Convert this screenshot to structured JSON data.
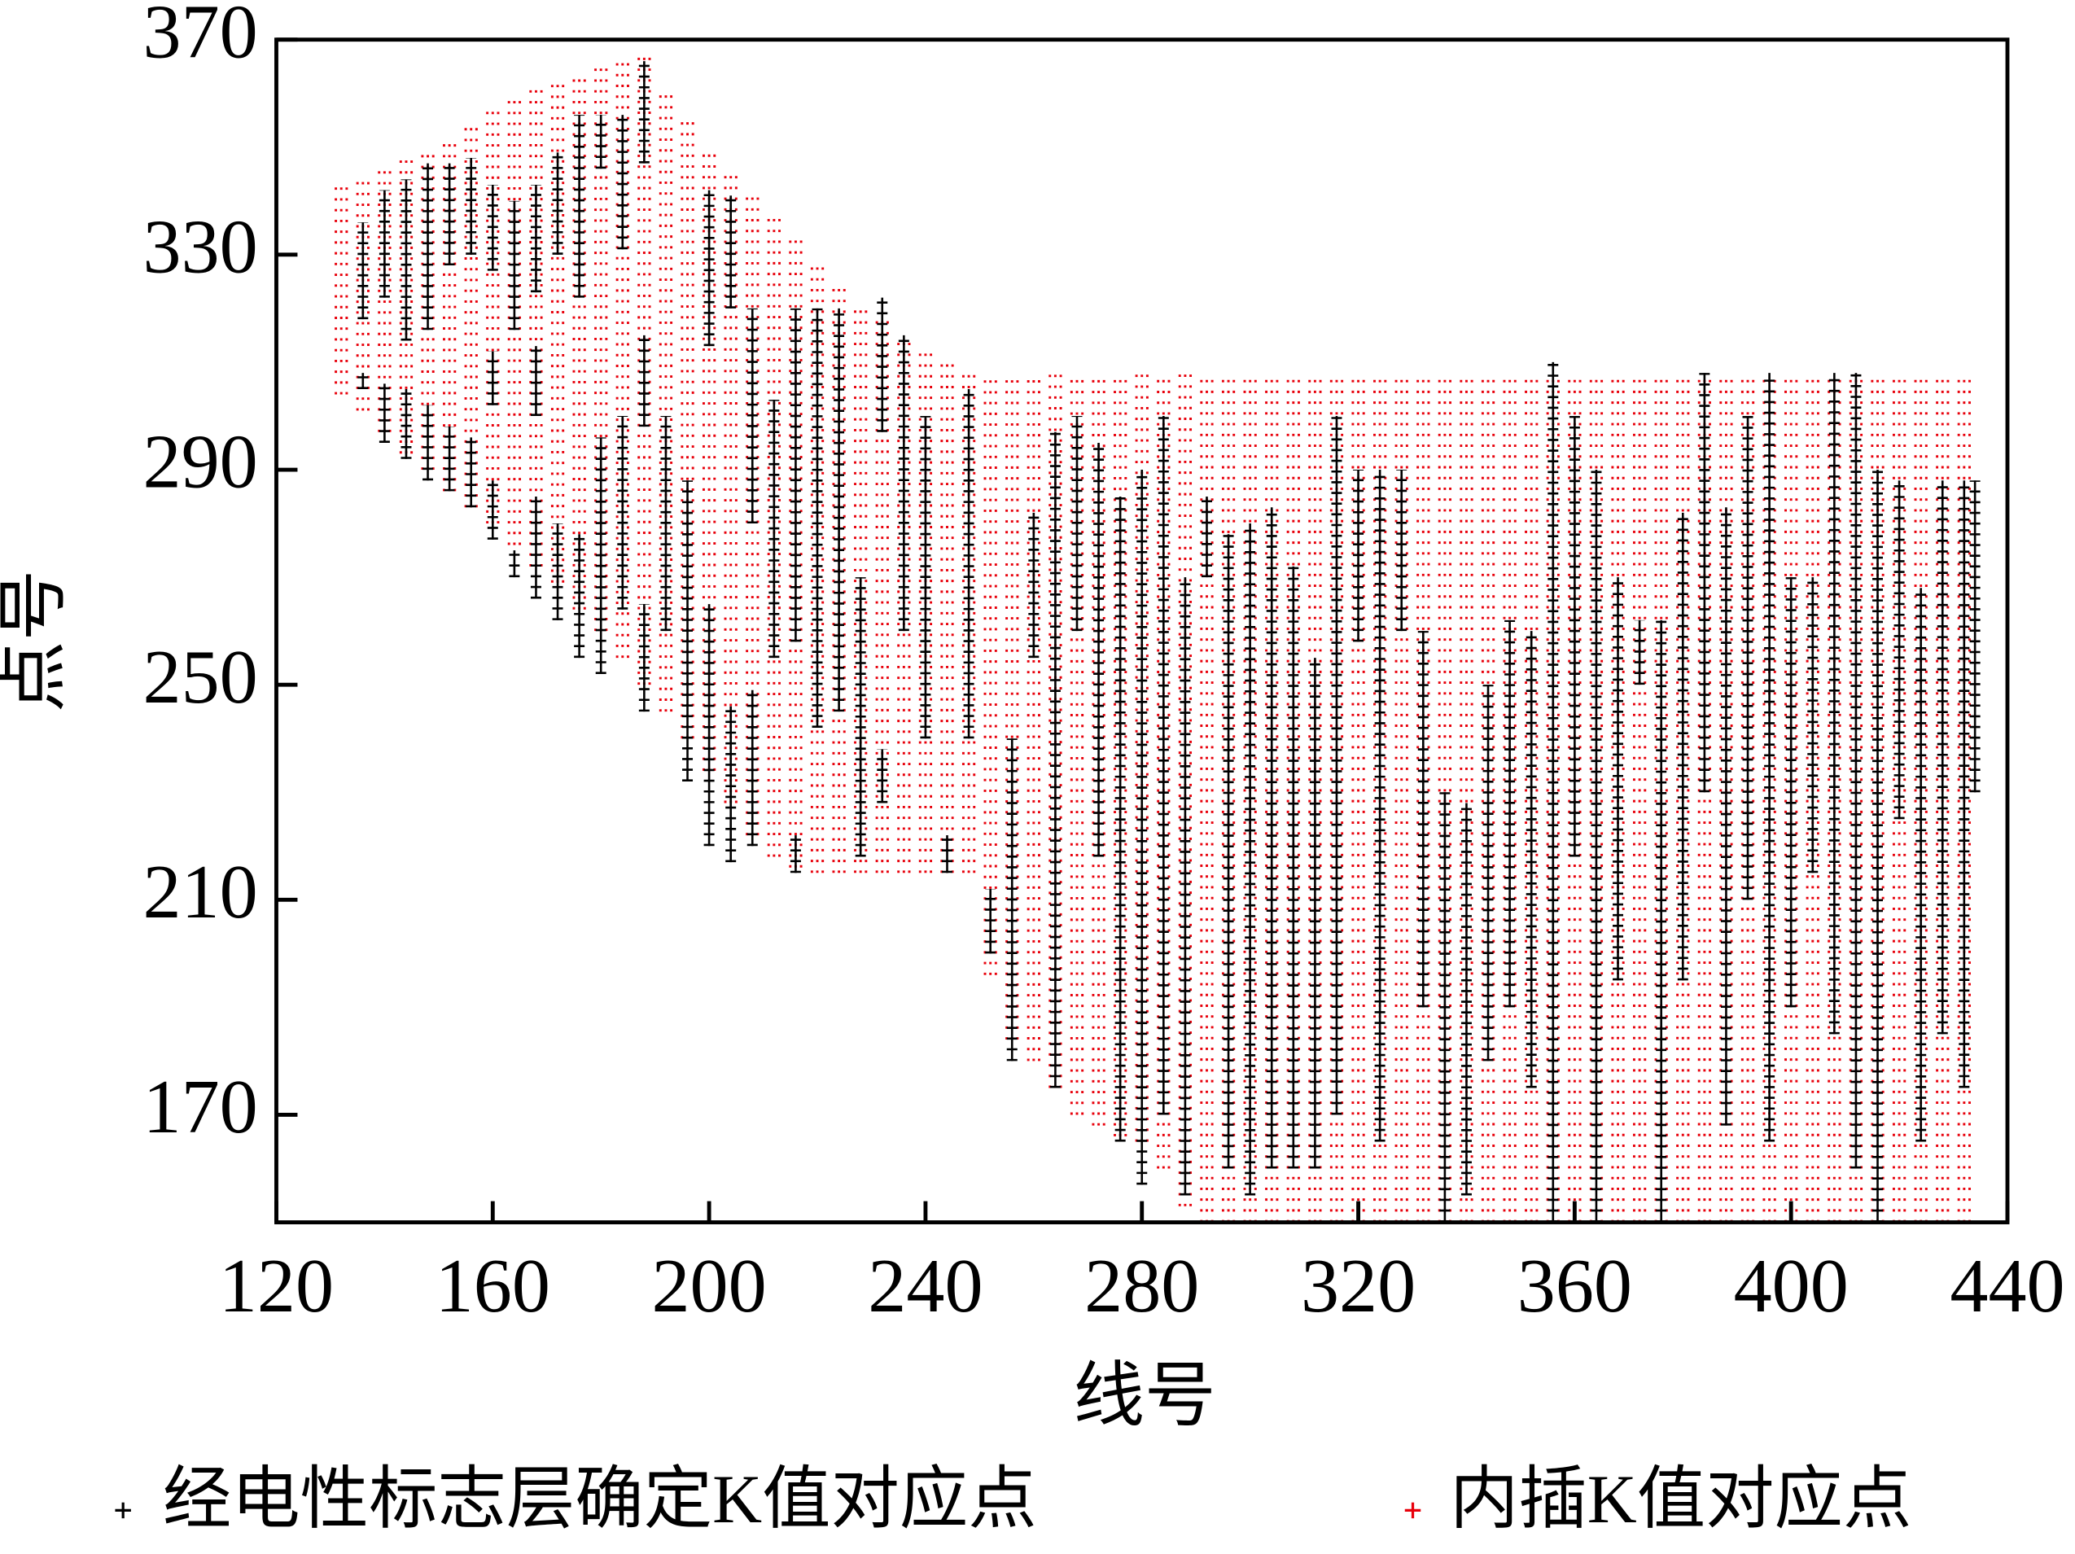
{
  "chart_data": {
    "type": "scatter",
    "xlabel": "线号",
    "ylabel": "点号",
    "xlim": [
      120,
      440
    ],
    "ylim": [
      150,
      370
    ],
    "xticks": [
      120,
      160,
      200,
      240,
      280,
      320,
      360,
      400,
      440
    ],
    "yticks": [
      170,
      210,
      250,
      290,
      330,
      370
    ],
    "series": [
      {
        "name": "经电性标志层确定K值对应点",
        "color": "#000000",
        "x": [
          136,
          136,
          140,
          140,
          144,
          144,
          148,
          148,
          152,
          152,
          156,
          156,
          160,
          160,
          160,
          164,
          164,
          168,
          168,
          168,
          172,
          172,
          176,
          176,
          180,
          180,
          184,
          184,
          188,
          188,
          188,
          192,
          196,
          200,
          200,
          204,
          204,
          208,
          208,
          212,
          216,
          216,
          220,
          224,
          228,
          232,
          232,
          236,
          240,
          244,
          248,
          252,
          256,
          260,
          264,
          268,
          272,
          276,
          280,
          284,
          288,
          292,
          296,
          300,
          304,
          308,
          312,
          316,
          320,
          324,
          328,
          332,
          336,
          340,
          344,
          348,
          352,
          356,
          360,
          364,
          368,
          372,
          376,
          380,
          384,
          388,
          392,
          396,
          400,
          404,
          408,
          412,
          416,
          420,
          424,
          428,
          432,
          434
        ],
        "low": [
          318,
          305,
          322,
          295,
          314,
          292,
          316,
          288,
          328,
          286,
          330,
          283,
          327,
          277,
          302,
          316,
          270,
          300,
          323,
          266,
          330,
          262,
          322,
          255,
          346,
          252,
          331,
          264,
          347,
          298,
          245,
          260,
          232,
          313,
          220,
          320,
          217,
          220,
          280,
          255,
          258,
          215,
          242,
          245,
          218,
          297,
          228,
          260,
          240,
          215,
          240,
          200,
          180,
          255,
          175,
          260,
          218,
          165,
          157,
          170,
          155,
          270,
          160,
          155,
          160,
          160,
          160,
          170,
          258,
          165,
          260,
          190,
          150,
          155,
          180,
          190,
          175,
          150,
          218,
          150,
          195,
          250,
          150,
          195,
          230,
          168,
          210,
          165,
          190,
          215,
          185,
          160,
          150,
          225,
          165,
          185,
          175,
          230
        ],
        "high": [
          336,
          308,
          342,
          306,
          344,
          305,
          347,
          302,
          347,
          298,
          348,
          296,
          343,
          288,
          312,
          340,
          275,
          313,
          343,
          285,
          349,
          280,
          356,
          278,
          356,
          296,
          356,
          300,
          366,
          315,
          265,
          300,
          288,
          342,
          265,
          341,
          246,
          249,
          320,
          303,
          320,
          222,
          320,
          320,
          270,
          322,
          238,
          315,
          300,
          222,
          305,
          212,
          240,
          282,
          297,
          300,
          295,
          285,
          290,
          300,
          270,
          285,
          278,
          280,
          283,
          272,
          255,
          300,
          290,
          290,
          290,
          260,
          230,
          228,
          250,
          262,
          260,
          310,
          300,
          290,
          270,
          262,
          262,
          282,
          308,
          283,
          300,
          308,
          270,
          270,
          308,
          308,
          290,
          288,
          268,
          288,
          288,
          288
        ]
      },
      {
        "name": "内插K值对应点",
        "color": "#e8000b",
        "x": [
          132,
          136,
          140,
          144,
          148,
          152,
          156,
          160,
          164,
          168,
          172,
          176,
          180,
          184,
          188,
          192,
          196,
          200,
          204,
          208,
          212,
          216,
          220,
          224,
          228,
          232,
          236,
          240,
          244,
          248,
          252,
          256,
          260,
          264,
          268,
          272,
          276,
          280,
          284,
          288,
          292,
          296,
          300,
          304,
          308,
          312,
          316,
          320,
          324,
          328,
          332,
          336,
          340,
          344,
          348,
          352,
          356,
          360,
          364,
          368,
          372,
          376,
          380,
          384,
          388,
          392,
          396,
          400,
          404,
          408,
          412,
          416,
          420,
          424,
          428,
          432
        ],
        "low": [
          304,
          301,
          297,
          293,
          290,
          286,
          283,
          280,
          276,
          272,
          269,
          264,
          260,
          255,
          250,
          245,
          240,
          234,
          228,
          222,
          218,
          216,
          215,
          215,
          215,
          215,
          215,
          215,
          215,
          215,
          196,
          184,
          180,
          175,
          170,
          168,
          166,
          165,
          160,
          153,
          150,
          150,
          150,
          150,
          150,
          150,
          150,
          150,
          150,
          150,
          150,
          150,
          150,
          150,
          150,
          150,
          150,
          150,
          150,
          150,
          150,
          150,
          150,
          150,
          150,
          150,
          150,
          150,
          150,
          150,
          150,
          150,
          150,
          150,
          150,
          150
        ],
        "high": [
          343,
          344,
          346,
          348,
          350,
          352,
          354,
          357,
          360,
          361,
          363,
          364,
          366,
          367,
          368,
          361,
          355,
          350,
          345,
          341,
          337,
          333,
          328,
          324,
          321,
          318,
          315,
          313,
          311,
          309,
          308,
          308,
          308,
          308,
          308,
          308,
          308,
          308,
          308,
          308,
          308,
          308,
          308,
          308,
          308,
          308,
          308,
          308,
          308,
          308,
          308,
          308,
          308,
          308,
          308,
          308,
          308,
          308,
          308,
          308,
          308,
          308,
          308,
          308,
          308,
          308,
          308,
          308,
          308,
          308,
          308,
          308,
          308,
          308,
          308,
          308
        ]
      }
    ]
  }
}
